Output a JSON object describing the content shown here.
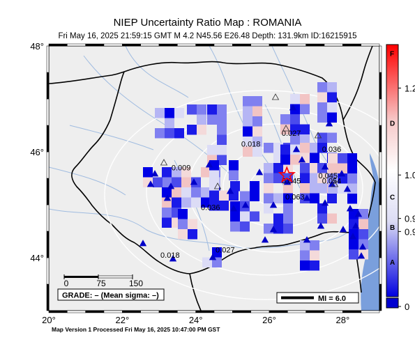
{
  "title": "NIEP Uncertainty Ratio Map : ROMANIA",
  "subtitle": "Fri May 16, 2025 21:59:15 GMT   M 4.2   N45.56 E26.48   Depth: 131.9km   ID:16215915",
  "footer": "Map Version 1 Processed Fri May 16, 2025 10:47:00 PM GST",
  "map": {
    "lon_range": [
      20,
      29
    ],
    "lat_range": [
      43,
      48
    ],
    "x_ticks": [
      {
        "value": 20,
        "label": "20°"
      },
      {
        "value": 22,
        "label": "22°"
      },
      {
        "value": 24,
        "label": "24°"
      },
      {
        "value": 26,
        "label": "26°"
      },
      {
        "value": 28,
        "label": "28°"
      }
    ],
    "y_ticks": [
      {
        "value": 48,
        "label": "48°"
      },
      {
        "value": 46,
        "label": "46°"
      },
      {
        "value": 44,
        "label": "44°"
      }
    ],
    "colors": {
      "land": "#eeeeee",
      "sea": "#7a9fdc",
      "border": "#000000",
      "rivers": "#9fbbe0",
      "contour": "#ffffff",
      "epicenter": "#ff0000"
    },
    "epicenter": {
      "lon": 26.48,
      "lat": 45.56,
      "symbol": "star"
    },
    "contour_labels": [
      {
        "text": "0.009",
        "lon": 23.6,
        "lat": 45.65
      },
      {
        "text": "0.018",
        "lon": 25.5,
        "lat": 46.1
      },
      {
        "text": "0.027",
        "lon": 26.6,
        "lat": 46.3
      },
      {
        "text": "0.036",
        "lon": 27.7,
        "lat": 46.0
      },
      {
        "text": "0.045",
        "lon": 27.6,
        "lat": 45.5
      },
      {
        "text": "0.054",
        "lon": 27.7,
        "lat": 45.4
      },
      {
        "text": "0.045",
        "lon": 26.6,
        "lat": 45.4
      },
      {
        "text": "0.063",
        "lon": 26.7,
        "lat": 45.1
      },
      {
        "text": "0.036",
        "lon": 24.4,
        "lat": 44.9
      },
      {
        "text": "0.027",
        "lon": 24.8,
        "lat": 44.1
      },
      {
        "text": "0.018",
        "lon": 23.3,
        "lat": 44.0
      }
    ]
  },
  "scale_bar": {
    "ticks": [
      "0",
      "75",
      "150"
    ]
  },
  "grade_text": "GRADE: – (Mean sigma: –)",
  "mi_label": "MI = 6.0",
  "colorbar": {
    "value_labels": [
      {
        "text": "1.2",
        "value": 1.2
      },
      {
        "text": "1.0",
        "value": 1.0
      },
      {
        "text": "0.9",
        "value": 0.9
      },
      {
        "text": "0.9",
        "value": 0.87
      },
      {
        "text": "0",
        "value": 0.4
      }
    ],
    "grades": [
      {
        "text": "F",
        "value": 1.28
      },
      {
        "text": "D",
        "value": 1.12
      },
      {
        "text": "C",
        "value": 0.95
      },
      {
        "text": "B",
        "value": 0.88
      },
      {
        "text": "A",
        "value": 0.8
      }
    ]
  }
}
